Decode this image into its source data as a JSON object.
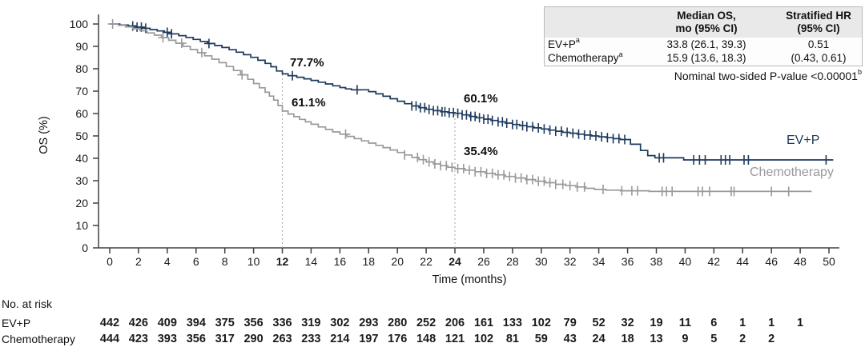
{
  "chart_data": {
    "type": "line",
    "subtype": "kaplan-meier-step",
    "title": "",
    "xlabel": "Time (months)",
    "ylabel": "OS (%)",
    "xlim": [
      0,
      50
    ],
    "ylim": [
      0,
      100
    ],
    "x_tick_step": 2,
    "y_tick_step": 10,
    "bold_x_ticks": [
      12,
      24
    ],
    "reference_lines_x": [
      12,
      24
    ],
    "grid": "off",
    "legend_position": "end-of-curve",
    "series": [
      {
        "name": "EV+P",
        "color": "#1e3a5e",
        "points": [
          [
            0,
            100
          ],
          [
            0.7,
            99.5
          ],
          [
            1.3,
            99.1
          ],
          [
            1.8,
            98.6
          ],
          [
            2.3,
            98.1
          ],
          [
            2.8,
            97.5
          ],
          [
            3.3,
            96.9
          ],
          [
            3.8,
            96.3
          ],
          [
            4.3,
            95.6
          ],
          [
            4.8,
            94.8
          ],
          [
            5.3,
            94.0
          ],
          [
            5.8,
            93.1
          ],
          [
            6.3,
            92.2
          ],
          [
            6.8,
            91.3
          ],
          [
            7.3,
            90.4
          ],
          [
            7.8,
            89.5
          ],
          [
            8.3,
            88.5
          ],
          [
            8.8,
            87.4
          ],
          [
            9.3,
            86.3
          ],
          [
            9.8,
            85.1
          ],
          [
            10.3,
            83.8
          ],
          [
            10.8,
            82.4
          ],
          [
            11.2,
            80.9
          ],
          [
            11.6,
            79.0
          ],
          [
            12,
            77.7
          ],
          [
            12.4,
            76.9
          ],
          [
            13,
            76.2
          ],
          [
            13.5,
            75.5
          ],
          [
            14,
            74.8
          ],
          [
            14.5,
            74.0
          ],
          [
            15,
            73.2
          ],
          [
            15.5,
            72.4
          ],
          [
            16,
            71.6
          ],
          [
            16.4,
            71.0
          ],
          [
            16.8,
            70.6
          ],
          [
            18,
            69.8
          ],
          [
            18.5,
            68.8
          ],
          [
            19,
            67.7
          ],
          [
            19.5,
            66.6
          ],
          [
            20,
            65.5
          ],
          [
            20.5,
            64.4
          ],
          [
            21,
            63.4
          ],
          [
            21.5,
            62.6
          ],
          [
            22,
            61.9
          ],
          [
            22.5,
            61.3
          ],
          [
            23,
            60.8
          ],
          [
            23.5,
            60.4
          ],
          [
            24,
            60.1
          ],
          [
            24.5,
            59.4
          ],
          [
            25,
            58.7
          ],
          [
            25.5,
            58.1
          ],
          [
            26,
            57.5
          ],
          [
            26.5,
            56.9
          ],
          [
            27,
            56.3
          ],
          [
            27.5,
            55.7
          ],
          [
            28,
            55.1
          ],
          [
            28.5,
            54.6
          ],
          [
            29,
            54.1
          ],
          [
            29.5,
            53.6
          ],
          [
            30,
            53.1
          ],
          [
            30.5,
            52.6
          ],
          [
            31,
            52.1
          ],
          [
            31.5,
            51.6
          ],
          [
            32,
            51.2
          ],
          [
            32.5,
            50.8
          ],
          [
            33,
            50.4
          ],
          [
            33.5,
            50.0
          ],
          [
            34,
            49.6
          ],
          [
            34.5,
            49.2
          ],
          [
            35,
            48.8
          ],
          [
            35.5,
            48.4
          ],
          [
            36.2,
            46.3
          ],
          [
            36.9,
            43.5
          ],
          [
            37.4,
            41.2
          ],
          [
            37.9,
            40.2
          ],
          [
            39.9,
            39.3
          ],
          [
            50.3,
            39.3
          ]
        ],
        "censors": [
          1.6,
          1.9,
          2.2,
          2.5,
          4.0,
          4.3,
          6.9,
          12.7,
          17.2,
          21.0,
          21.3,
          21.6,
          21.9,
          22.2,
          22.5,
          22.8,
          23.1,
          23.3,
          23.6,
          23.9,
          24.2,
          24.5,
          24.8,
          25.1,
          25.4,
          25.7,
          26.0,
          26.3,
          26.6,
          27.0,
          27.3,
          27.6,
          28.0,
          28.3,
          28.7,
          29.0,
          29.4,
          29.8,
          30.2,
          30.6,
          31.0,
          31.4,
          31.8,
          32.2,
          32.6,
          33.0,
          33.4,
          33.8,
          34.2,
          34.6,
          35.0,
          35.4,
          35.8,
          38.2,
          38.5,
          40.6,
          41.0,
          41.4,
          42.5,
          42.8,
          43.1,
          44.1,
          44.4,
          49.8
        ]
      },
      {
        "name": "Chemotherapy",
        "color": "#9a9a9a",
        "points": [
          [
            0,
            100
          ],
          [
            0.6,
            99.4
          ],
          [
            1.1,
            98.7
          ],
          [
            1.6,
            97.9
          ],
          [
            2.1,
            97.0
          ],
          [
            2.6,
            96.0
          ],
          [
            3.1,
            95.0
          ],
          [
            3.6,
            93.9
          ],
          [
            4.1,
            92.7
          ],
          [
            4.6,
            91.4
          ],
          [
            5.1,
            90.0
          ],
          [
            5.6,
            88.6
          ],
          [
            6.1,
            87.2
          ],
          [
            6.6,
            85.8
          ],
          [
            7.1,
            84.3
          ],
          [
            7.6,
            82.7
          ],
          [
            8.1,
            81.0
          ],
          [
            8.6,
            79.2
          ],
          [
            9.1,
            77.3
          ],
          [
            9.6,
            75.3
          ],
          [
            10.0,
            73.4
          ],
          [
            10.4,
            71.5
          ],
          [
            10.8,
            69.5
          ],
          [
            11.1,
            67.8
          ],
          [
            11.4,
            66.0
          ],
          [
            11.7,
            63.6
          ],
          [
            12,
            61.1
          ],
          [
            12.4,
            59.8
          ],
          [
            12.8,
            58.6
          ],
          [
            13.2,
            57.4
          ],
          [
            13.6,
            56.3
          ],
          [
            14,
            55.2
          ],
          [
            14.5,
            54.0
          ],
          [
            15,
            52.9
          ],
          [
            15.5,
            51.8
          ],
          [
            16,
            50.8
          ],
          [
            16.5,
            49.8
          ],
          [
            17,
            48.8
          ],
          [
            17.5,
            47.8
          ],
          [
            18,
            46.8
          ],
          [
            18.5,
            45.8
          ],
          [
            19,
            44.8
          ],
          [
            19.5,
            43.7
          ],
          [
            20,
            42.6
          ],
          [
            20.5,
            41.5
          ],
          [
            21,
            40.4
          ],
          [
            21.5,
            39.4
          ],
          [
            22,
            38.4
          ],
          [
            22.5,
            37.5
          ],
          [
            23,
            36.7
          ],
          [
            23.5,
            36.0
          ],
          [
            24,
            35.4
          ],
          [
            24.7,
            34.7
          ],
          [
            25.4,
            34.0
          ],
          [
            26.1,
            33.3
          ],
          [
            26.8,
            32.6
          ],
          [
            27.5,
            31.9
          ],
          [
            28.2,
            31.2
          ],
          [
            28.9,
            30.5
          ],
          [
            29.6,
            29.8
          ],
          [
            30.3,
            29.1
          ],
          [
            31.0,
            28.4
          ],
          [
            31.7,
            27.8
          ],
          [
            32.4,
            27.2
          ],
          [
            33.1,
            26.6
          ],
          [
            33.7,
            26.1
          ],
          [
            34.5,
            25.8
          ],
          [
            35.5,
            25.5
          ],
          [
            37.5,
            25.2
          ],
          [
            48.8,
            25.2
          ]
        ],
        "censors": [
          0.2,
          3.7,
          5.0,
          6.4,
          9.2,
          16.4,
          20.5,
          21.4,
          21.8,
          22.2,
          22.6,
          23.0,
          23.4,
          23.8,
          24.2,
          24.6,
          25.0,
          25.4,
          25.8,
          26.2,
          26.6,
          27.0,
          27.4,
          27.8,
          28.2,
          28.6,
          29.0,
          29.4,
          29.8,
          30.2,
          30.6,
          31.0,
          31.5,
          32.0,
          32.5,
          33.0,
          34.3,
          35.6,
          36.3,
          36.7,
          38.4,
          38.7,
          39.1,
          40.9,
          41.2,
          41.7,
          43.2,
          43.4,
          46.0,
          47.2
        ]
      }
    ],
    "annotations": [
      {
        "text": "77.7%",
        "series": "EV+P",
        "month": 12
      },
      {
        "text": "61.1%",
        "series": "Chemotherapy",
        "month": 12
      },
      {
        "text": "60.1%",
        "series": "EV+P",
        "month": 24
      },
      {
        "text": "35.4%",
        "series": "Chemotherapy",
        "month": 24
      }
    ],
    "end_labels": [
      {
        "text": "EV+P"
      },
      {
        "text": "Chemotherapy"
      }
    ]
  },
  "stats_table": {
    "col_median": {
      "line1": "Median OS,",
      "line2": "mo (95% CI)"
    },
    "col_hr": {
      "line1": "Stratified HR",
      "line2": "(95% CI)"
    },
    "rows": [
      {
        "label": "EV+P",
        "sup": "a",
        "median": "33.8 (26.1, 39.3)",
        "hr": "0.51"
      },
      {
        "label": "Chemotherapy",
        "sup": "a",
        "median": "15.9 (13.6, 18.3)",
        "hr": "(0.43, 0.61)"
      }
    ]
  },
  "pvalue": {
    "text": "Nominal two-sided P-value <0.00001",
    "sup": "b"
  },
  "risk_table": {
    "title": "No. at risk",
    "rows": [
      {
        "label": "EV+P",
        "color": "#1e3a5e",
        "counts": [
          442,
          426,
          409,
          394,
          375,
          356,
          336,
          319,
          302,
          293,
          280,
          252,
          206,
          161,
          133,
          102,
          79,
          52,
          32,
          19,
          11,
          6,
          1,
          1,
          1
        ]
      },
      {
        "label": "Chemotherapy",
        "color": "#9a9a9a",
        "counts": [
          444,
          423,
          393,
          356,
          317,
          290,
          263,
          233,
          214,
          197,
          176,
          148,
          121,
          102,
          81,
          59,
          43,
          24,
          18,
          13,
          9,
          5,
          2,
          2
        ]
      }
    ]
  }
}
